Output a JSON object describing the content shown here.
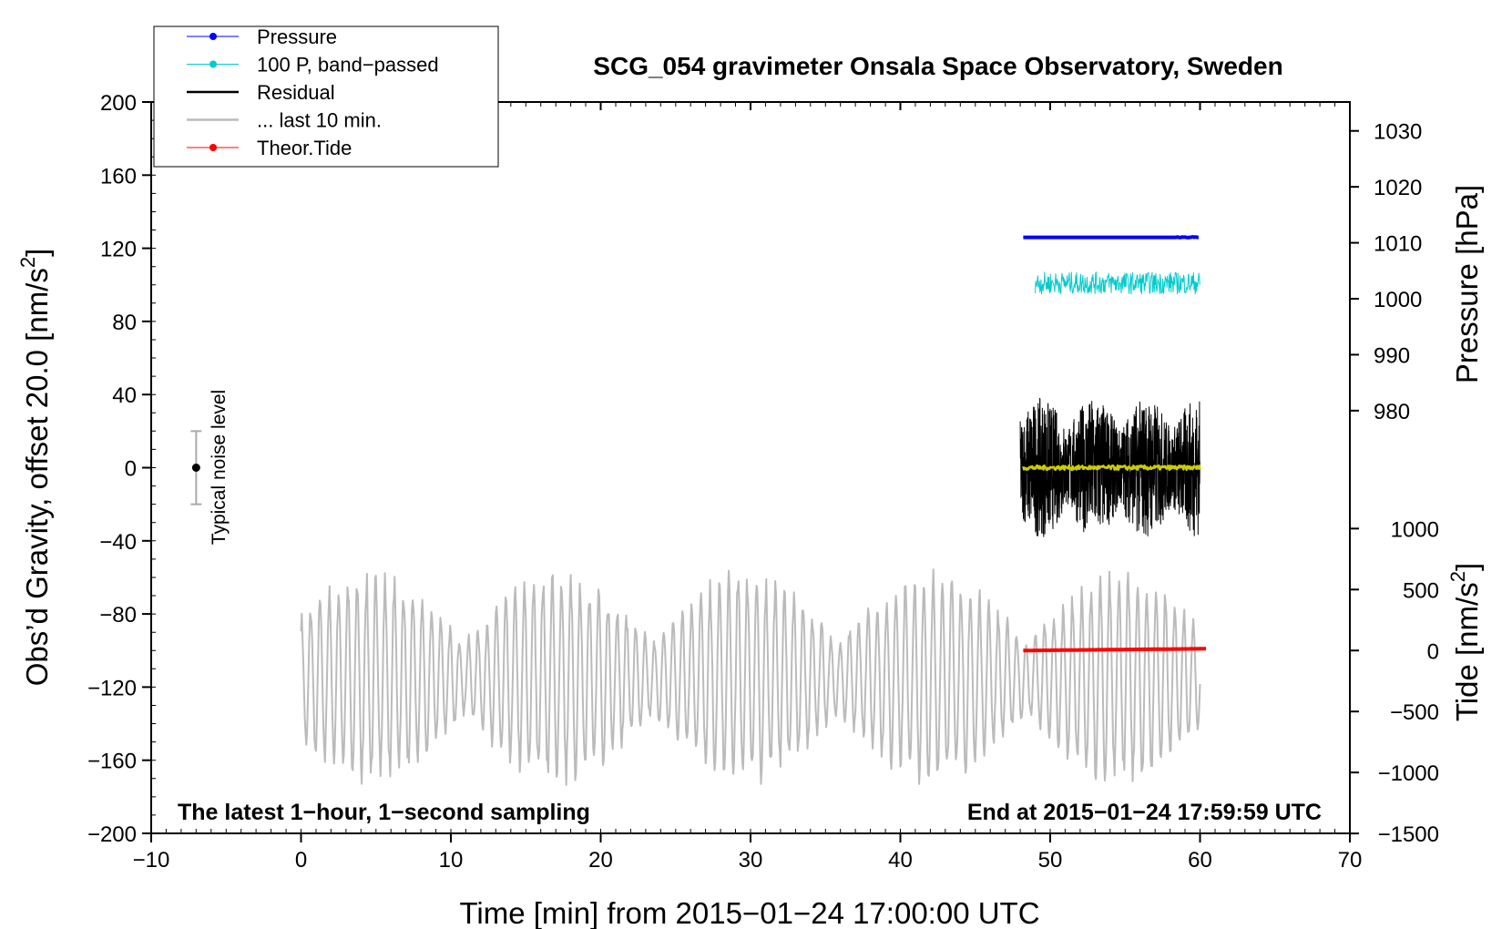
{
  "chart_data": {
    "type": "line",
    "title": "SCG_054 gravimeter Onsala Space Observatory, Sweden",
    "xlabel": "Time [min] from 2015−01−24 17:00:00 UTC",
    "ylabel_main": "Obs’d Gravity, offset 20.0 [nm/s",
    "ylabel_main_sup": "2",
    "ylabel_main_end": "]",
    "ylabel_pressure": "Pressure [hPa]",
    "ylabel_tide": "Tide [nm/s",
    "ylabel_tide_sup": "2",
    "ylabel_tide_end": "]",
    "xlim": [
      -10,
      70
    ],
    "ylim": [
      -200,
      200
    ],
    "x_ticks": [
      -10,
      0,
      10,
      20,
      30,
      40,
      50,
      60,
      70
    ],
    "x_tick_labels": [
      "−10",
      "0",
      "10",
      "20",
      "30",
      "40",
      "50",
      "60",
      "70"
    ],
    "y_ticks": [
      200,
      160,
      120,
      80,
      40,
      0,
      -40,
      -80,
      -120,
      -160,
      -200
    ],
    "y_tick_labels": [
      "200",
      "160",
      "120",
      "80",
      "40",
      "0",
      "−40",
      "−80",
      "−120",
      "−160",
      "−200"
    ],
    "pressure_ticks": [
      1030,
      1020,
      1010,
      1000,
      990,
      980
    ],
    "pressure_tick_labels": [
      "1030",
      "1020",
      "1010",
      "1000",
      "990",
      "980"
    ],
    "pressure_scale": {
      "p_ref": 1010,
      "g_at_ref": 123,
      "g_per_hPa": 3.06
    },
    "tide_ticks": [
      1000,
      500,
      0,
      -500,
      -1000,
      -1500
    ],
    "tide_tick_labels": [
      "1000",
      "500",
      "0",
      "−500",
      "−1000",
      "−1500"
    ],
    "tide_scale": {
      "t_ref": 0,
      "g_at_ref": -100,
      "g_per_unit": 0.0667
    },
    "legend": [
      {
        "label": "Pressure",
        "color": "#0000ff",
        "marker": true
      },
      {
        "label": "100 P, band−passed",
        "color": "#00cccc",
        "marker": true
      },
      {
        "label": "Residual",
        "color": "#000000",
        "marker": false
      },
      {
        "label": "... last 10 min.",
        "color": "#bbbbbb",
        "marker": false
      },
      {
        "label": "Theor.Tide",
        "color": "#ff0000",
        "marker": true
      }
    ],
    "annotations": {
      "left": "The latest 1−hour, 1−second sampling",
      "right": "End at 2015−01−24 17:59:59 UTC",
      "noise": "Typical noise level"
    },
    "noise_bar": {
      "x": -7,
      "center": 0,
      "half_range": 20
    },
    "series": [
      {
        "name": "Pressure",
        "color": "#0000ff",
        "x_start": 48.2,
        "x_end": 60.0,
        "g_level": 126
      },
      {
        "name": "100 P, band−passed",
        "color": "#00cccc",
        "x_start": 49.0,
        "x_end": 60.0,
        "g_level": 101,
        "amplitude": 6
      },
      {
        "name": "Residual",
        "color": "#000000",
        "x_start": 48.0,
        "x_end": 60.0,
        "g_level": 0,
        "amplitude": 38
      },
      {
        "name": "Residual mean",
        "color": "#cccc00",
        "x_start": 48.2,
        "x_end": 60.0,
        "g_level": 0
      },
      {
        "name": "... last 10 min.",
        "color": "#bbbbbb",
        "x_start": 0,
        "x_end": 60.0,
        "g_level": -115,
        "amplitude": 55
      },
      {
        "name": "Theor.Tide",
        "color": "#ff0000",
        "x_start": 48.2,
        "x_end": 60.5,
        "g_start": -100,
        "g_end": -99
      }
    ]
  }
}
